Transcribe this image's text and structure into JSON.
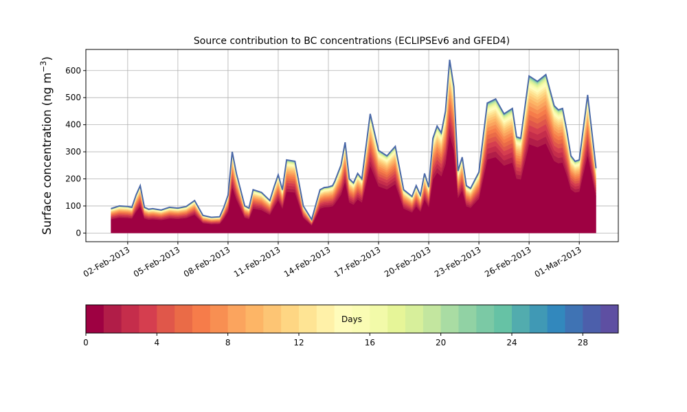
{
  "chart_data": [
    {
      "type": "area",
      "title": "Source contribution to BC concentrations (ECLIPSEv6 and GFED4)",
      "ylabel": "Surface concentration (ng m",
      "ylabel_exponent": "−3",
      "ylabel_suffix": ")",
      "ylim": [
        -32,
        678
      ],
      "yticks": [
        0,
        100,
        200,
        300,
        400,
        500,
        600
      ],
      "ytick_labels": [
        "0",
        "100",
        "200",
        "300",
        "400",
        "500",
        "600"
      ],
      "xlim": [
        "2013-01-30T12:00",
        "2013-03-03T08:00"
      ],
      "xticks": [
        "2013-02-02",
        "2013-02-05",
        "2013-02-08",
        "2013-02-11",
        "2013-02-14",
        "2013-02-17",
        "2013-02-20",
        "2013-02-23",
        "2013-02-26",
        "2013-03-01"
      ],
      "xtick_labels": [
        "02-Feb-2013",
        "05-Feb-2013",
        "08-Feb-2013",
        "11-Feb-2013",
        "14-Feb-2013",
        "17-Feb-2013",
        "20-Feb-2013",
        "23-Feb-2013",
        "26-Feb-2013",
        "01-Mar-2013"
      ],
      "grid": true,
      "stacked_by": "age_days",
      "x": [
        "2013-02-01T00:00",
        "2013-02-01T12:00",
        "2013-02-02T00:00",
        "2013-02-02T06:00",
        "2013-02-02T12:00",
        "2013-02-02T18:00",
        "2013-02-03T00:00",
        "2013-02-03T06:00",
        "2013-02-03T12:00",
        "2013-02-04T00:00",
        "2013-02-04T12:00",
        "2013-02-05T00:00",
        "2013-02-05T12:00",
        "2013-02-06T00:00",
        "2013-02-06T12:00",
        "2013-02-07T00:00",
        "2013-02-07T12:00",
        "2013-02-07T18:00",
        "2013-02-08T00:00",
        "2013-02-08T06:00",
        "2013-02-08T12:00",
        "2013-02-09T00:00",
        "2013-02-09T06:00",
        "2013-02-09T12:00",
        "2013-02-10T00:00",
        "2013-02-10T12:00",
        "2013-02-10T18:00",
        "2013-02-11T00:00",
        "2013-02-11T06:00",
        "2013-02-11T12:00",
        "2013-02-12T00:00",
        "2013-02-12T12:00",
        "2013-02-13T00:00",
        "2013-02-13T12:00",
        "2013-02-13T18:00",
        "2013-02-14T00:00",
        "2013-02-14T06:00",
        "2013-02-14T09:00",
        "2013-02-14T12:00",
        "2013-02-14T18:00",
        "2013-02-15T00:00",
        "2013-02-15T06:00",
        "2013-02-15T12:00",
        "2013-02-15T18:00",
        "2013-02-16T00:00",
        "2013-02-16T12:00",
        "2013-02-17T00:00",
        "2013-02-17T12:00",
        "2013-02-18T00:00",
        "2013-02-18T12:00",
        "2013-02-19T00:00",
        "2013-02-19T06:00",
        "2013-02-19T12:00",
        "2013-02-19T18:00",
        "2013-02-20T00:00",
        "2013-02-20T06:00",
        "2013-02-20T12:00",
        "2013-02-20T18:00",
        "2013-02-21T00:00",
        "2013-02-21T06:00",
        "2013-02-21T12:00",
        "2013-02-21T18:00",
        "2013-02-22T00:00",
        "2013-02-22T06:00",
        "2013-02-22T12:00",
        "2013-02-23T00:00",
        "2013-02-23T12:00",
        "2013-02-24T00:00",
        "2013-02-24T12:00",
        "2013-02-25T00:00",
        "2013-02-25T06:00",
        "2013-02-25T12:00",
        "2013-02-26T00:00",
        "2013-02-26T12:00",
        "2013-02-27T00:00",
        "2013-02-27T12:00",
        "2013-02-27T18:00",
        "2013-02-28T00:00",
        "2013-02-28T06:00",
        "2013-02-28T12:00",
        "2013-02-28T18:00",
        "2013-03-01T00:00",
        "2013-03-01T12:00",
        "2013-03-02T00:00"
      ],
      "series": [
        {
          "values": [
            90,
            100,
            98,
            95,
            140,
            175,
            95,
            88,
            90,
            85,
            95,
            92,
            98,
            120,
            65,
            58,
            60,
            95,
            140,
            300,
            220,
            100,
            92,
            160,
            150,
            120,
            170,
            215,
            160,
            270,
            265,
            100,
            50,
            160,
            168,
            170,
            175,
            190,
            210,
            250,
            335,
            200,
            185,
            220,
            200,
            440,
            305,
            285,
            320,
            160,
            135,
            175,
            140,
            220,
            170,
            350,
            395,
            370,
            450,
            640,
            540,
            230,
            280,
            175,
            165,
            225,
            480,
            495,
            440,
            460,
            355,
            350,
            580,
            560,
            585,
            470,
            455,
            460,
            380,
            285,
            265,
            270,
            510,
            240
          ]
        }
      ]
    },
    {
      "type": "colorbar",
      "label": "Days",
      "range": [
        0,
        30
      ],
      "levels": 30,
      "ticks": [
        0,
        4,
        8,
        12,
        16,
        20,
        24,
        28
      ],
      "tick_labels": [
        "0",
        "4",
        "8",
        "12",
        "16",
        "20",
        "24",
        "28"
      ],
      "colors": [
        "#9e0142",
        "#b11d48",
        "#c52d4b",
        "#d53e4f",
        "#e0574a",
        "#ea6b47",
        "#f67c4a",
        "#f88f52",
        "#fba45e",
        "#fdb566",
        "#fdc574",
        "#fed683",
        "#fee494",
        "#fff1a8",
        "#fffcbb",
        "#fafcb4",
        "#f2faa9",
        "#e6f598",
        "#d7ef9b",
        "#c3e69f",
        "#a9dca3",
        "#91d2a4",
        "#7bc9a5",
        "#66c2a5",
        "#52acae",
        "#4099b5",
        "#3288bd",
        "#3f73b4",
        "#4c5fab",
        "#5e4fa2"
      ]
    }
  ]
}
